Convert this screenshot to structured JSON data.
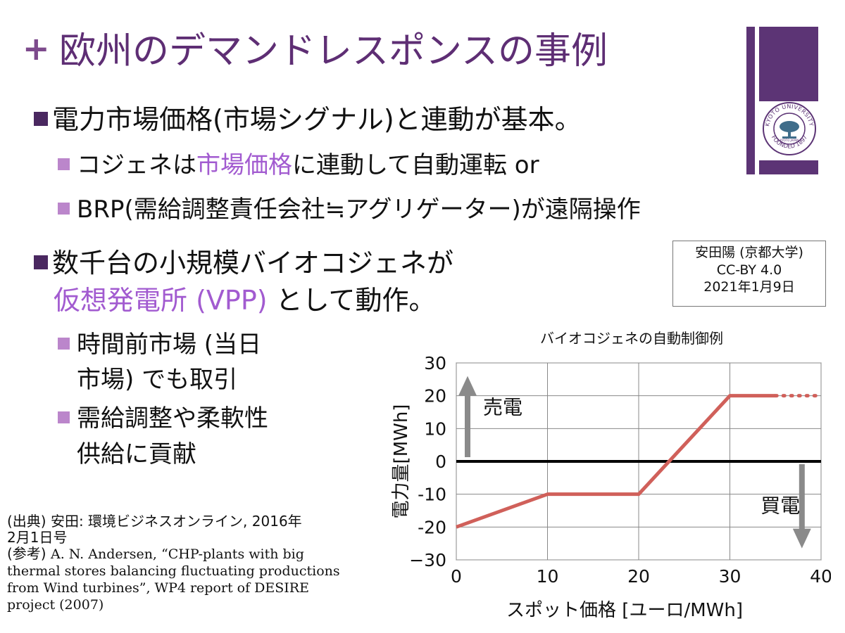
{
  "slide": {
    "plus": "+",
    "title": "欧州のデマンドレスポンスの事例"
  },
  "bullets": {
    "b1_text": "電力市場価格(市場シグナル)と連動が基本。",
    "b1a_pre": "コジェネは",
    "b1a_hl": "市場価格",
    "b1a_post": "に連動して自動運転 or",
    "b1b_text": "BRP(需給調整責任会社≒アグリゲーター)が遠隔操作",
    "b2_line1": "数千台の小規模バイオコジェネが",
    "b2_hl": "仮想発電所 (VPP)",
    "b2_post": " として動作。",
    "b2a_line1": "時間前市場 (当日",
    "b2a_line2": "市場) でも取引",
    "b2b_line1": "需給調整や柔軟性",
    "b2b_line2": "供給に貢献"
  },
  "credit": {
    "line1": "安田陽 (京都大学)",
    "line2": "CC-BY 4.0",
    "line3": "2021年1月9日"
  },
  "logo": {
    "top_text": "KYOTO UNIVERSITY",
    "bottom_text": "FOUNDED 1897",
    "small_text": "KYOTO JAPAN"
  },
  "source": {
    "line1": "(出典) 安田: 環境ビジネスオンライン, 2016年",
    "line2": "2月1日号",
    "line3_pre": "(参考) ",
    "line3_ref": "A. N. Andersen, “CHP-plants with big thermal stores balancing fluctuating productions from Wind turbines”, WP4 report of DESIRE project (2007)"
  },
  "colors": {
    "title": "#5e2e74",
    "accent": "#a25bd0",
    "logo": "#5c3475",
    "line": "#d0605a",
    "arrow": "#8a8a8a"
  },
  "chart_data": {
    "type": "line",
    "title": "バイオコジェネの自動制御例",
    "xlabel": "スポット価格 [ユーロ/MWh]",
    "ylabel": "電力量[MWh]",
    "xlim": [
      0,
      40
    ],
    "ylim": [
      -30,
      30
    ],
    "x_ticks": [
      0,
      10,
      20,
      30,
      40
    ],
    "y_ticks": [
      30,
      20,
      10,
      0,
      -10,
      -20,
      -30
    ],
    "y_tick_labels": [
      "30",
      "20",
      "10",
      "0",
      "-10",
      "-20",
      "−30"
    ],
    "grid": true,
    "series": [
      {
        "x": [
          0,
          10,
          20,
          30,
          35
        ],
        "y": [
          -20,
          -10,
          -10,
          20,
          20
        ]
      }
    ],
    "dotted_extension": {
      "x": [
        35,
        40
      ],
      "y": [
        20,
        20
      ]
    },
    "annotations": {
      "sell": "売電",
      "buy": "買電"
    }
  }
}
